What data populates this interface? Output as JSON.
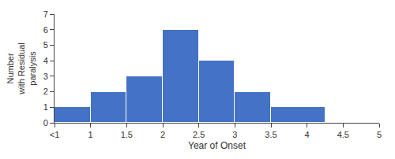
{
  "chart_data": {
    "type": "histogram",
    "xlabel": "Year of Onset",
    "ylabel": "Number\nwith Residual\nparalysis",
    "bins": [
      0.5,
      1.0,
      1.5,
      2.0,
      2.5,
      3.0,
      3.5,
      4.25
    ],
    "values": [
      1,
      2,
      3,
      6,
      4,
      2,
      1
    ],
    "color": "#4472C4",
    "xlim": [
      0.5,
      5.0
    ],
    "xticks": [
      {
        "value": 0.5,
        "label": "<1"
      },
      1,
      1.5,
      2,
      2.5,
      3,
      3.5,
      4,
      4.5,
      5
    ],
    "ylim": [
      0,
      7
    ],
    "yticks": [
      0,
      1,
      2,
      3,
      4,
      5,
      6,
      7
    ],
    "grid": false
  }
}
